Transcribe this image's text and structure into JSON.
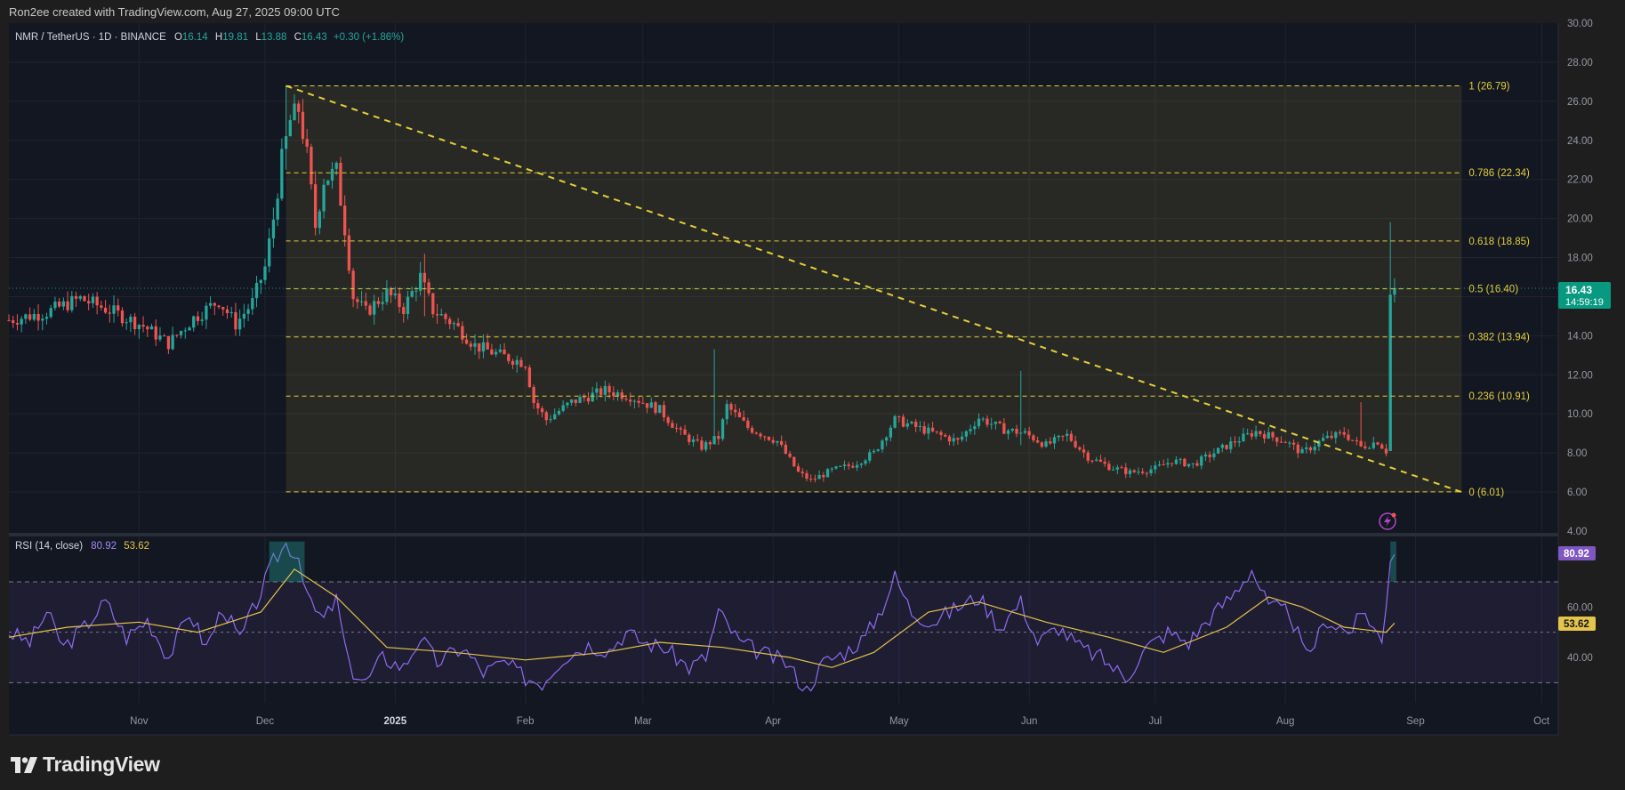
{
  "header": {
    "credit": "Ron2ee created with TradingView.com, Aug 27, 2025 09:00 UTC"
  },
  "legend": {
    "symbol": "NMR / TetherUS · 1D · BINANCE",
    "o_label": "O",
    "o_value": "16.14",
    "h_label": "H",
    "h_value": "19.81",
    "l_label": "L",
    "l_value": "13.88",
    "c_label": "C",
    "c_value": "16.43",
    "change": "+0.30 (+1.86%)"
  },
  "price_badge": {
    "price": "16.43",
    "countdown": "14:59:19"
  },
  "footer": {
    "brand": "TradingView"
  },
  "colors": {
    "up": "#26a69a",
    "down": "#ef5350",
    "fib": "#e4cf3b",
    "rsi": "#8e6cf0",
    "rsi_ma": "#e4c44a",
    "badge": "#089981"
  },
  "chart_data": [
    {
      "type": "candlestick",
      "title": "NMR / TetherUS · 1D · BINANCE",
      "x_range": [
        "2024-10-01",
        "2025-10-05"
      ],
      "ylim": [
        4,
        30
      ],
      "y_ticks": [
        "4.00",
        "6.00",
        "8.00",
        "10.00",
        "12.00",
        "14.00",
        "16.00",
        "18.00",
        "20.00",
        "22.00",
        "24.00",
        "26.00",
        "28.00",
        "30.00"
      ],
      "x_ticks": [
        {
          "date": "2024-11-01",
          "label": "Nov"
        },
        {
          "date": "2024-12-01",
          "label": "Dec"
        },
        {
          "date": "2025-01-01",
          "label": "2025"
        },
        {
          "date": "2025-02-01",
          "label": "Feb"
        },
        {
          "date": "2025-03-01",
          "label": "Mar"
        },
        {
          "date": "2025-04-01",
          "label": "Apr"
        },
        {
          "date": "2025-05-01",
          "label": "May"
        },
        {
          "date": "2025-06-01",
          "label": "Jun"
        },
        {
          "date": "2025-07-01",
          "label": "Jul"
        },
        {
          "date": "2025-08-01",
          "label": "Aug"
        },
        {
          "date": "2025-09-01",
          "label": "Sep"
        },
        {
          "date": "2025-10-01",
          "label": "Oct"
        }
      ],
      "close_path": [
        [
          "2024-10-01",
          14.8
        ],
        [
          "2024-10-10",
          15.2
        ],
        [
          "2024-10-18",
          15.9
        ],
        [
          "2024-10-25",
          15.3
        ],
        [
          "2024-11-02",
          14.5
        ],
        [
          "2024-11-08",
          13.6
        ],
        [
          "2024-11-14",
          14.9
        ],
        [
          "2024-11-20",
          15.8
        ],
        [
          "2024-11-24",
          14.6
        ],
        [
          "2024-11-28",
          15.7
        ],
        [
          "2024-12-01",
          17.5
        ],
        [
          "2024-12-03",
          20.0
        ],
        [
          "2024-12-05",
          23.0
        ],
        [
          "2024-12-07",
          25.0
        ],
        [
          "2024-12-09",
          25.6
        ],
        [
          "2024-12-11",
          23.2
        ],
        [
          "2024-12-13",
          19.6
        ],
        [
          "2024-12-15",
          22.0
        ],
        [
          "2024-12-18",
          22.4
        ],
        [
          "2024-12-20",
          19.5
        ],
        [
          "2024-12-22",
          16.0
        ],
        [
          "2024-12-25",
          15.2
        ],
        [
          "2024-12-30",
          16.2
        ],
        [
          "2025-01-03",
          15.4
        ],
        [
          "2025-01-07",
          17.0
        ],
        [
          "2025-01-10",
          15.3
        ],
        [
          "2025-01-15",
          14.6
        ],
        [
          "2025-01-20",
          13.5
        ],
        [
          "2025-01-26",
          13.0
        ],
        [
          "2025-02-01",
          12.6
        ],
        [
          "2025-02-03",
          10.6
        ],
        [
          "2025-02-06",
          9.7
        ],
        [
          "2025-02-12",
          10.6
        ],
        [
          "2025-02-20",
          11.2
        ],
        [
          "2025-02-26",
          10.9
        ],
        [
          "2025-03-05",
          10.2
        ],
        [
          "2025-03-10",
          9.0
        ],
        [
          "2025-03-15",
          8.3
        ],
        [
          "2025-03-19",
          8.8
        ],
        [
          "2025-03-21",
          10.4
        ],
        [
          "2025-03-26",
          9.3
        ],
        [
          "2025-04-02",
          8.6
        ],
        [
          "2025-04-07",
          7.0
        ],
        [
          "2025-04-10",
          6.6
        ],
        [
          "2025-04-15",
          7.1
        ],
        [
          "2025-04-20",
          7.4
        ],
        [
          "2025-04-25",
          8.0
        ],
        [
          "2025-04-30",
          9.7
        ],
        [
          "2025-05-08",
          9.1
        ],
        [
          "2025-05-15",
          8.6
        ],
        [
          "2025-05-20",
          9.8
        ],
        [
          "2025-05-26",
          9.2
        ],
        [
          "2025-05-31",
          9.0
        ],
        [
          "2025-06-05",
          8.4
        ],
        [
          "2025-06-10",
          8.9
        ],
        [
          "2025-06-15",
          7.8
        ],
        [
          "2025-06-20",
          7.3
        ],
        [
          "2025-06-25",
          7.0
        ],
        [
          "2025-07-01",
          7.2
        ],
        [
          "2025-07-05",
          7.6
        ],
        [
          "2025-07-10",
          7.4
        ],
        [
          "2025-07-15",
          8.0
        ],
        [
          "2025-07-20",
          8.6
        ],
        [
          "2025-07-25",
          9.1
        ],
        [
          "2025-08-01",
          8.6
        ],
        [
          "2025-08-05",
          8.0
        ],
        [
          "2025-08-10",
          8.7
        ],
        [
          "2025-08-15",
          9.0
        ],
        [
          "2025-08-19",
          8.3
        ],
        [
          "2025-08-23",
          8.6
        ],
        [
          "2025-08-25",
          8.1
        ],
        [
          "2025-08-26",
          16.1
        ],
        [
          "2025-08-27",
          16.43
        ]
      ],
      "highlighted_wicks": [
        {
          "date": "2024-12-06",
          "high": 26.8,
          "low": 22.5
        },
        {
          "date": "2025-01-08",
          "high": 18.2,
          "low": 15.0
        },
        {
          "date": "2025-03-18",
          "high": 13.3,
          "low": 8.5
        },
        {
          "date": "2025-05-30",
          "high": 12.2,
          "low": 8.4
        },
        {
          "date": "2025-08-19",
          "high": 10.6,
          "low": 8.3
        },
        {
          "date": "2025-08-26",
          "high": 19.81,
          "low": 13.88,
          "open": 8.1,
          "close": 16.1
        }
      ],
      "fib_levels": [
        {
          "ratio": "1",
          "value": 26.79,
          "label": "1 (26.79)"
        },
        {
          "ratio": "0.786",
          "value": 22.34,
          "label": "0.786 (22.34)"
        },
        {
          "ratio": "0.618",
          "value": 18.85,
          "label": "0.618 (18.85)"
        },
        {
          "ratio": "0.5",
          "value": 16.4,
          "label": "0.5 (16.40)"
        },
        {
          "ratio": "0.382",
          "value": 13.94,
          "label": "0.382 (13.94)"
        },
        {
          "ratio": "0.236",
          "value": 10.91,
          "label": "0.236 (10.91)"
        },
        {
          "ratio": "0",
          "value": 6.01,
          "label": "0 (6.01)"
        }
      ],
      "fib_range_dates": [
        "2024-12-06",
        "2025-09-12"
      ],
      "trendline": {
        "from": [
          "2024-12-06",
          26.79
        ],
        "to": [
          "2025-09-12",
          6.0
        ]
      },
      "last_price": 16.43
    },
    {
      "type": "line",
      "title": "RSI (14, close)",
      "rsi_value": "80.92",
      "ma_value": "53.62",
      "ylim": [
        22,
        88
      ],
      "y_ticks": [
        "40.00",
        "60.00"
      ],
      "bands": [
        70,
        50,
        30
      ],
      "series": [
        {
          "name": "RSI",
          "points": [
            [
              "2024-10-01",
              50
            ],
            [
              "2024-10-06",
              46
            ],
            [
              "2024-10-10",
              58
            ],
            [
              "2024-10-14",
              44
            ],
            [
              "2024-10-19",
              52
            ],
            [
              "2024-10-24",
              62
            ],
            [
              "2024-10-29",
              48
            ],
            [
              "2024-11-03",
              55
            ],
            [
              "2024-11-08",
              40
            ],
            [
              "2024-11-13",
              58
            ],
            [
              "2024-11-17",
              44
            ],
            [
              "2024-11-21",
              60
            ],
            [
              "2024-11-25",
              47
            ],
            [
              "2024-11-29",
              62
            ],
            [
              "2024-12-03",
              78
            ],
            [
              "2024-12-06",
              85
            ],
            [
              "2024-12-09",
              80
            ],
            [
              "2024-12-12",
              60
            ],
            [
              "2024-12-15",
              55
            ],
            [
              "2024-12-18",
              63
            ],
            [
              "2024-12-21",
              36
            ],
            [
              "2024-12-25",
              30
            ],
            [
              "2024-12-29",
              40
            ],
            [
              "2025-01-03",
              36
            ],
            [
              "2025-01-07",
              48
            ],
            [
              "2025-01-11",
              38
            ],
            [
              "2025-01-17",
              44
            ],
            [
              "2025-01-22",
              34
            ],
            [
              "2025-01-27",
              38
            ],
            [
              "2025-02-01",
              32
            ],
            [
              "2025-02-05",
              30
            ],
            [
              "2025-02-10",
              40
            ],
            [
              "2025-02-16",
              45
            ],
            [
              "2025-02-21",
              43
            ],
            [
              "2025-02-25",
              50
            ],
            [
              "2025-03-01",
              46
            ],
            [
              "2025-03-06",
              44
            ],
            [
              "2025-03-12",
              36
            ],
            [
              "2025-03-16",
              40
            ],
            [
              "2025-03-19",
              58
            ],
            [
              "2025-03-24",
              46
            ],
            [
              "2025-03-29",
              42
            ],
            [
              "2025-04-04",
              38
            ],
            [
              "2025-04-09",
              27
            ],
            [
              "2025-04-13",
              38
            ],
            [
              "2025-04-18",
              42
            ],
            [
              "2025-04-23",
              48
            ],
            [
              "2025-04-27",
              60
            ],
            [
              "2025-04-30",
              72
            ],
            [
              "2025-05-04",
              58
            ],
            [
              "2025-05-09",
              54
            ],
            [
              "2025-05-15",
              60
            ],
            [
              "2025-05-20",
              64
            ],
            [
              "2025-05-25",
              52
            ],
            [
              "2025-05-30",
              62
            ],
            [
              "2025-06-03",
              46
            ],
            [
              "2025-06-08",
              52
            ],
            [
              "2025-06-13",
              44
            ],
            [
              "2025-06-18",
              40
            ],
            [
              "2025-06-24",
              32
            ],
            [
              "2025-06-29",
              44
            ],
            [
              "2025-07-04",
              50
            ],
            [
              "2025-07-09",
              46
            ],
            [
              "2025-07-14",
              56
            ],
            [
              "2025-07-19",
              64
            ],
            [
              "2025-07-24",
              75
            ],
            [
              "2025-07-28",
              60
            ],
            [
              "2025-08-02",
              58
            ],
            [
              "2025-08-06",
              40
            ],
            [
              "2025-08-11",
              55
            ],
            [
              "2025-08-16",
              50
            ],
            [
              "2025-08-20",
              58
            ],
            [
              "2025-08-24",
              46
            ],
            [
              "2025-08-26",
              78
            ],
            [
              "2025-08-27",
              80.92
            ]
          ]
        },
        {
          "name": "RSI-based MA",
          "points": [
            [
              "2024-10-01",
              48
            ],
            [
              "2024-10-15",
              52
            ],
            [
              "2024-11-01",
              54
            ],
            [
              "2024-11-15",
              50
            ],
            [
              "2024-11-30",
              58
            ],
            [
              "2024-12-08",
              75
            ],
            [
              "2024-12-18",
              64
            ],
            [
              "2024-12-30",
              44
            ],
            [
              "2025-01-15",
              42
            ],
            [
              "2025-02-01",
              39
            ],
            [
              "2025-02-20",
              42
            ],
            [
              "2025-03-05",
              46
            ],
            [
              "2025-03-20",
              44
            ],
            [
              "2025-04-05",
              40
            ],
            [
              "2025-04-15",
              36
            ],
            [
              "2025-04-25",
              42
            ],
            [
              "2025-05-08",
              58
            ],
            [
              "2025-05-20",
              62
            ],
            [
              "2025-06-05",
              54
            ],
            [
              "2025-06-20",
              48
            ],
            [
              "2025-07-03",
              42
            ],
            [
              "2025-07-18",
              52
            ],
            [
              "2025-07-28",
              64
            ],
            [
              "2025-08-05",
              60
            ],
            [
              "2025-08-15",
              52
            ],
            [
              "2025-08-25",
              50
            ],
            [
              "2025-08-27",
              53.62
            ]
          ]
        }
      ]
    }
  ]
}
